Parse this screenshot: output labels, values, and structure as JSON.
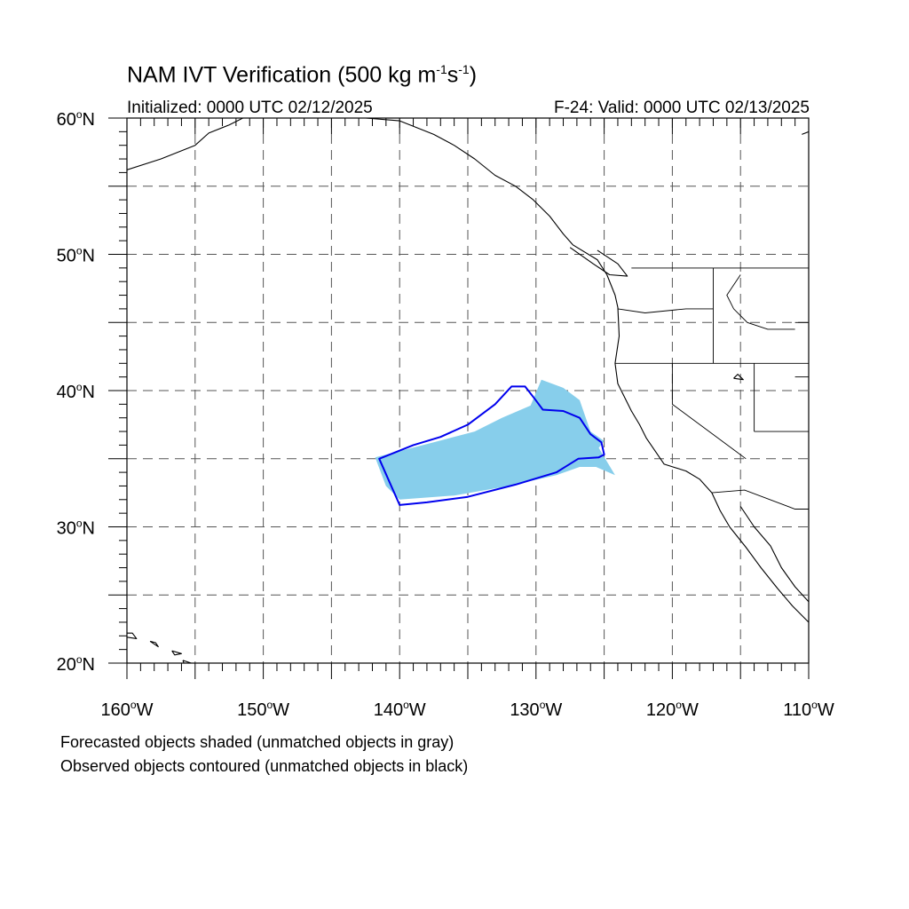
{
  "title": {
    "main": "NAM IVT Verification (500 kg m",
    "exp1": "-1",
    "mid": "s",
    "exp2": "-1",
    "close": ")"
  },
  "subtitle": {
    "initialized": "Initialized: 0000 UTC 02/12/2025",
    "valid": "F-24: Valid: 0000 UTC 02/13/2025"
  },
  "axes": {
    "lat_labels": [
      {
        "value": 60,
        "text": "60",
        "suffix": "N"
      },
      {
        "value": 50,
        "text": "50",
        "suffix": "N"
      },
      {
        "value": 40,
        "text": "40",
        "suffix": "N"
      },
      {
        "value": 30,
        "text": "30",
        "suffix": "N"
      },
      {
        "value": 20,
        "text": "20",
        "suffix": "N"
      }
    ],
    "lon_labels": [
      {
        "value": -160,
        "text": "160",
        "suffix": "W"
      },
      {
        "value": -150,
        "text": "150",
        "suffix": "W"
      },
      {
        "value": -140,
        "text": "140",
        "suffix": "W"
      },
      {
        "value": -130,
        "text": "130",
        "suffix": "W"
      },
      {
        "value": -120,
        "text": "120",
        "suffix": "W"
      },
      {
        "value": -110,
        "text": "110",
        "suffix": "W"
      }
    ],
    "lat_range": [
      20,
      60
    ],
    "lon_range": [
      -160,
      -110
    ],
    "grid_spacing_deg": 5,
    "grid": "dashed"
  },
  "map_data": {
    "forecast_object_color": "#87ceeb",
    "observed_contour_color": "#0000ee",
    "forecast_object": [
      [
        -141.8,
        35.1
      ],
      [
        -137.5,
        36.2
      ],
      [
        -134.5,
        37.0
      ],
      [
        -132.5,
        38.0
      ],
      [
        -130.4,
        38.9
      ],
      [
        -129.6,
        40.8
      ],
      [
        -128.0,
        40.2
      ],
      [
        -126.8,
        39.3
      ],
      [
        -126.0,
        37.0
      ],
      [
        -125.0,
        36.3
      ],
      [
        -125.4,
        35.8
      ],
      [
        -124.2,
        33.8
      ],
      [
        -125.6,
        34.4
      ],
      [
        -126.8,
        34.4
      ],
      [
        -128.5,
        33.8
      ],
      [
        -132.0,
        33.0
      ],
      [
        -136.0,
        32.3
      ],
      [
        -140.0,
        32.0
      ],
      [
        -141.0,
        33.0
      ]
    ],
    "observed_object": [
      [
        -141.5,
        35.0
      ],
      [
        -140.0,
        31.6
      ],
      [
        -138.0,
        31.8
      ],
      [
        -135.0,
        32.2
      ],
      [
        -131.5,
        33.1
      ],
      [
        -128.5,
        34.0
      ],
      [
        -126.9,
        35.0
      ],
      [
        -125.4,
        35.1
      ],
      [
        -125.0,
        35.3
      ],
      [
        -125.2,
        36.2
      ],
      [
        -126.0,
        36.8
      ],
      [
        -126.8,
        38.0
      ],
      [
        -128.0,
        38.5
      ],
      [
        -129.5,
        38.6
      ],
      [
        -130.1,
        39.4
      ],
      [
        -130.8,
        40.3
      ],
      [
        -131.8,
        40.3
      ],
      [
        -133.0,
        39.0
      ],
      [
        -135.0,
        37.5
      ],
      [
        -137.0,
        36.6
      ],
      [
        -139.0,
        36.0
      ]
    ],
    "coastline": [
      [
        [
          -160,
          56.2
        ],
        [
          -157.5,
          57.0
        ],
        [
          -155.0,
          58.0
        ],
        [
          -154.0,
          58.9
        ],
        [
          -152.5,
          59.5
        ],
        [
          -151.5,
          60
        ]
      ],
      [
        [
          -142.5,
          60
        ],
        [
          -140.0,
          59.8
        ],
        [
          -137.5,
          58.8
        ],
        [
          -136.0,
          58.0
        ],
        [
          -134.5,
          57.0
        ],
        [
          -133.0,
          55.8
        ],
        [
          -131.5,
          55.0
        ],
        [
          -130.2,
          54.0
        ],
        [
          -129.0,
          52.8
        ],
        [
          -128.0,
          51.5
        ],
        [
          -127.3,
          50.7
        ],
        [
          -125.5,
          49.6
        ],
        [
          -124.8,
          48.5
        ],
        [
          -124.2,
          47.0
        ],
        [
          -124.0,
          46.1
        ],
        [
          -123.9,
          44.0
        ],
        [
          -124.2,
          42.0
        ],
        [
          -124.0,
          40.5
        ],
        [
          -123.0,
          38.5
        ],
        [
          -122.4,
          37.5
        ],
        [
          -121.9,
          36.5
        ],
        [
          -120.6,
          34.6
        ],
        [
          -119.0,
          34.1
        ],
        [
          -118.0,
          33.5
        ],
        [
          -117.1,
          32.5
        ],
        [
          -116.5,
          31.2
        ],
        [
          -115.8,
          30.0
        ],
        [
          -114.6,
          28.5
        ],
        [
          -113.5,
          27.0
        ],
        [
          -112.3,
          25.5
        ],
        [
          -111.2,
          24.2
        ],
        [
          -110,
          23.0
        ]
      ],
      [
        [
          -115.0,
          31.5
        ],
        [
          -114.0,
          30.0
        ],
        [
          -112.8,
          28.6
        ],
        [
          -112.0,
          27.0
        ],
        [
          -111.0,
          25.6
        ],
        [
          -110,
          24.5
        ]
      ],
      [
        [
          -125.5,
          50.3
        ],
        [
          -124.0,
          49.3
        ],
        [
          -123.3,
          48.4
        ],
        [
          -124.6,
          48.5
        ],
        [
          -125.8,
          49.3
        ],
        [
          -127.5,
          50.5
        ]
      ],
      [
        [
          -160,
          21.9
        ],
        [
          -159.3,
          21.8
        ],
        [
          -159.6,
          22.2
        ],
        [
          -160,
          22.2
        ]
      ],
      [
        [
          -158.3,
          21.6
        ],
        [
          -157.7,
          21.2
        ],
        [
          -157.9,
          21.5
        ],
        [
          -158.3,
          21.6
        ]
      ],
      [
        [
          -156.7,
          20.9
        ],
        [
          -156.0,
          20.7
        ],
        [
          -156.5,
          20.6
        ],
        [
          -156.7,
          20.9
        ]
      ],
      [
        [
          -155.9,
          20.2
        ],
        [
          -155.0,
          19.9
        ],
        [
          -154.9,
          19.5
        ],
        [
          -155.5,
          19.2
        ],
        [
          -155.9,
          20.2
        ]
      ],
      [
        [
          -110.5,
          58.8
        ],
        [
          -110,
          59.0
        ]
      ],
      [
        [
          -115.5,
          40.9
        ],
        [
          -114.8,
          40.8
        ],
        [
          -115.2,
          41.2
        ],
        [
          -115.5,
          40.9
        ]
      ]
    ],
    "borders": [
      [
        [
          -123.0,
          49.0
        ],
        [
          -110,
          49.0
        ]
      ],
      [
        [
          -124.0,
          46.0
        ],
        [
          -122.0,
          45.7
        ],
        [
          -119.0,
          46.0
        ],
        [
          -117.0,
          46.0
        ]
      ],
      [
        [
          -117.0,
          49.0
        ],
        [
          -117.0,
          42.0
        ]
      ],
      [
        [
          -124.2,
          42.0
        ],
        [
          -110,
          42.0
        ]
      ],
      [
        [
          -120.0,
          42.0
        ],
        [
          -120.0,
          39.0
        ],
        [
          -114.6,
          35.0
        ]
      ],
      [
        [
          -114.0,
          42.0
        ],
        [
          -114.0,
          37.0
        ]
      ],
      [
        [
          -117.1,
          32.5
        ],
        [
          -114.7,
          32.7
        ],
        [
          -111.0,
          31.3
        ],
        [
          -110,
          31.3
        ]
      ],
      [
        [
          -111.0,
          45.0
        ],
        [
          -110,
          45.0
        ]
      ],
      [
        [
          -111.0,
          41.0
        ],
        [
          -110,
          41.0
        ]
      ],
      [
        [
          -114.0,
          37.0
        ],
        [
          -110,
          37.0
        ]
      ],
      [
        [
          -115.0,
          48.5
        ],
        [
          -116.0,
          47.0
        ],
        [
          -115.5,
          46.0
        ],
        [
          -114.5,
          45.0
        ],
        [
          -113.0,
          44.5
        ],
        [
          -111.0,
          44.5
        ]
      ]
    ]
  },
  "footnotes": [
    "Forecasted objects shaded (unmatched objects in gray)",
    "Observed objects contoured (unmatched objects in black)"
  ]
}
